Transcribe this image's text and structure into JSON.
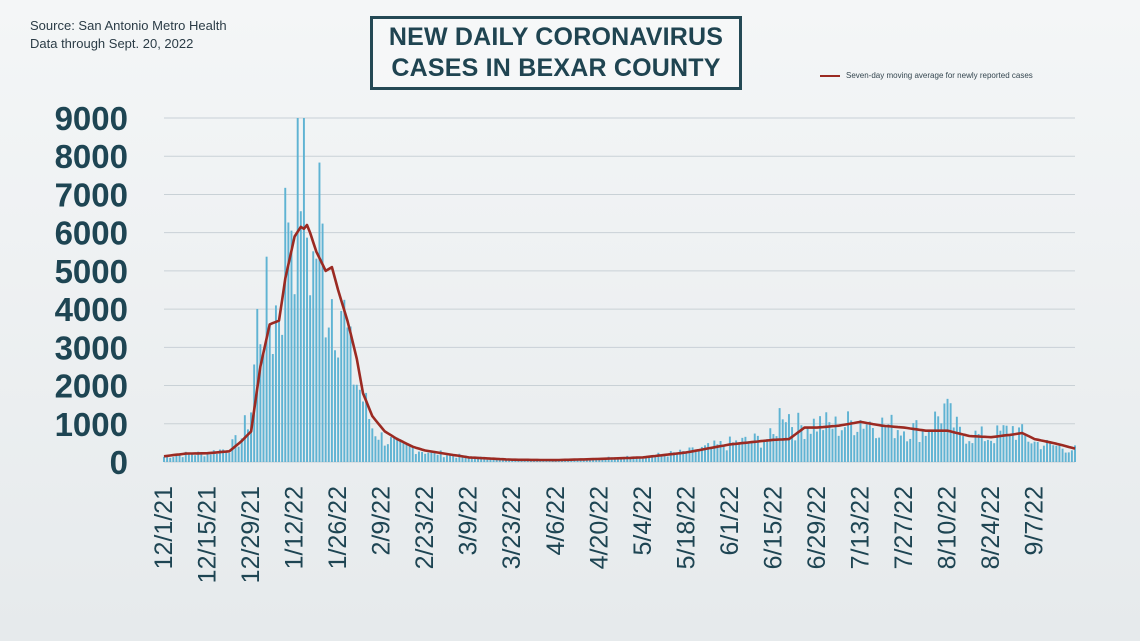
{
  "source": {
    "line1": "Source: San Antonio Metro Health",
    "line2": "Data through Sept. 20, 2022"
  },
  "title": {
    "line1": "NEW DAILY CORONAVIRUS",
    "line2": "CASES IN BEXAR COUNTY"
  },
  "colors": {
    "bar": "#5fb3d3",
    "line": "#9b2a22",
    "grid": "#c9d1d6",
    "text": "#1e4553"
  },
  "chart_data": {
    "type": "bar",
    "title": "NEW DAILY CORONAVIRUS CASES IN BEXAR COUNTY",
    "xlabel": "",
    "ylabel": "",
    "ylim": [
      0,
      9000
    ],
    "grid": true,
    "legend_placement": "top-right",
    "y_ticks": [
      "9000",
      "8000",
      "7000",
      "6000",
      "5000",
      "4000",
      "3000",
      "2000",
      "1000",
      "0"
    ],
    "x_ticks": [
      "12/1/21",
      "12/15/21",
      "12/29/21",
      "1/12/22",
      "1/26/22",
      "2/9/22",
      "2/23/22",
      "3/9/22",
      "3/23/22",
      "4/6/22",
      "4/20/22",
      "5/4/22",
      "5/18/22",
      "6/1/22",
      "6/15/22",
      "6/29/22",
      "7/13/22",
      "7/27/22",
      "8/10/22",
      "8/24/22",
      "9/7/22"
    ],
    "x_range": [
      "12/1/21",
      "9/20/22"
    ],
    "series": [
      {
        "kind": "bars",
        "anchors": [
          [
            "2021-12-01",
            150
          ],
          [
            "2021-12-08",
            220
          ],
          [
            "2021-12-15",
            250
          ],
          [
            "2021-12-22",
            400
          ],
          [
            "2021-12-26",
            700
          ],
          [
            "2021-12-29",
            1500
          ],
          [
            "2021-12-31",
            3800
          ],
          [
            "2022-01-02",
            4300
          ],
          [
            "2022-01-05",
            3900
          ],
          [
            "2022-01-08",
            5000
          ],
          [
            "2022-01-10",
            7700
          ],
          [
            "2022-01-12",
            7200
          ],
          [
            "2022-01-14",
            9000
          ],
          [
            "2022-01-16",
            6500
          ],
          [
            "2022-01-18",
            5500
          ],
          [
            "2022-01-20",
            7000
          ],
          [
            "2022-01-22",
            5000
          ],
          [
            "2022-01-24",
            4800
          ],
          [
            "2022-01-27",
            4600
          ],
          [
            "2022-01-30",
            2800
          ],
          [
            "2022-02-03",
            1800
          ],
          [
            "2022-02-06",
            1000
          ],
          [
            "2022-02-09",
            700
          ],
          [
            "2022-02-14",
            500
          ],
          [
            "2022-02-23",
            300
          ],
          [
            "2022-03-09",
            130
          ],
          [
            "2022-03-23",
            70
          ],
          [
            "2022-04-06",
            60
          ],
          [
            "2022-04-20",
            100
          ],
          [
            "2022-05-04",
            150
          ],
          [
            "2022-05-18",
            280
          ],
          [
            "2022-06-01",
            520
          ],
          [
            "2022-06-12",
            650
          ],
          [
            "2022-06-15",
            700
          ],
          [
            "2022-06-18",
            1650
          ],
          [
            "2022-06-22",
            1000
          ],
          [
            "2022-06-29",
            1100
          ],
          [
            "2022-07-06",
            1000
          ],
          [
            "2022-07-13",
            1200
          ],
          [
            "2022-07-20",
            1050
          ],
          [
            "2022-07-27",
            950
          ],
          [
            "2022-08-03",
            900
          ],
          [
            "2022-08-09",
            1500
          ],
          [
            "2022-08-14",
            800
          ],
          [
            "2022-08-24",
            700
          ],
          [
            "2022-08-31",
            950
          ],
          [
            "2022-09-07",
            550
          ],
          [
            "2022-09-14",
            450
          ],
          [
            "2022-09-20",
            350
          ]
        ]
      },
      {
        "kind": "line",
        "name": "Seven-day moving average for newly reported cases",
        "anchors": [
          [
            "2021-12-01",
            150
          ],
          [
            "2021-12-08",
            220
          ],
          [
            "2021-12-15",
            230
          ],
          [
            "2021-12-22",
            280
          ],
          [
            "2021-12-26",
            550
          ],
          [
            "2021-12-29",
            800
          ],
          [
            "2022-01-01",
            2500
          ],
          [
            "2022-01-04",
            3600
          ],
          [
            "2022-01-07",
            3700
          ],
          [
            "2022-01-09",
            4800
          ],
          [
            "2022-01-12",
            5900
          ],
          [
            "2022-01-14",
            6150
          ],
          [
            "2022-01-15",
            6100
          ],
          [
            "2022-01-16",
            6200
          ],
          [
            "2022-01-17",
            6000
          ],
          [
            "2022-01-19",
            5500
          ],
          [
            "2022-01-22",
            5000
          ],
          [
            "2022-01-24",
            5100
          ],
          [
            "2022-01-26",
            4500
          ],
          [
            "2022-01-29",
            3700
          ],
          [
            "2022-02-01",
            2700
          ],
          [
            "2022-02-03",
            1800
          ],
          [
            "2022-02-06",
            1200
          ],
          [
            "2022-02-10",
            800
          ],
          [
            "2022-02-14",
            600
          ],
          [
            "2022-02-19",
            400
          ],
          [
            "2022-02-23",
            300
          ],
          [
            "2022-03-09",
            120
          ],
          [
            "2022-03-23",
            60
          ],
          [
            "2022-04-06",
            50
          ],
          [
            "2022-04-20",
            80
          ],
          [
            "2022-05-04",
            120
          ],
          [
            "2022-05-18",
            250
          ],
          [
            "2022-06-01",
            460
          ],
          [
            "2022-06-15",
            580
          ],
          [
            "2022-06-20",
            600
          ],
          [
            "2022-06-25",
            900
          ],
          [
            "2022-06-29",
            900
          ],
          [
            "2022-07-06",
            950
          ],
          [
            "2022-07-13",
            1050
          ],
          [
            "2022-07-20",
            950
          ],
          [
            "2022-07-27",
            900
          ],
          [
            "2022-08-03",
            820
          ],
          [
            "2022-08-10",
            820
          ],
          [
            "2022-08-17",
            680
          ],
          [
            "2022-08-24",
            650
          ],
          [
            "2022-08-31",
            720
          ],
          [
            "2022-09-03",
            760
          ],
          [
            "2022-09-07",
            600
          ],
          [
            "2022-09-14",
            480
          ],
          [
            "2022-09-20",
            350
          ]
        ]
      }
    ]
  },
  "legend": {
    "label": "Seven-day moving average for newly reported cases"
  }
}
